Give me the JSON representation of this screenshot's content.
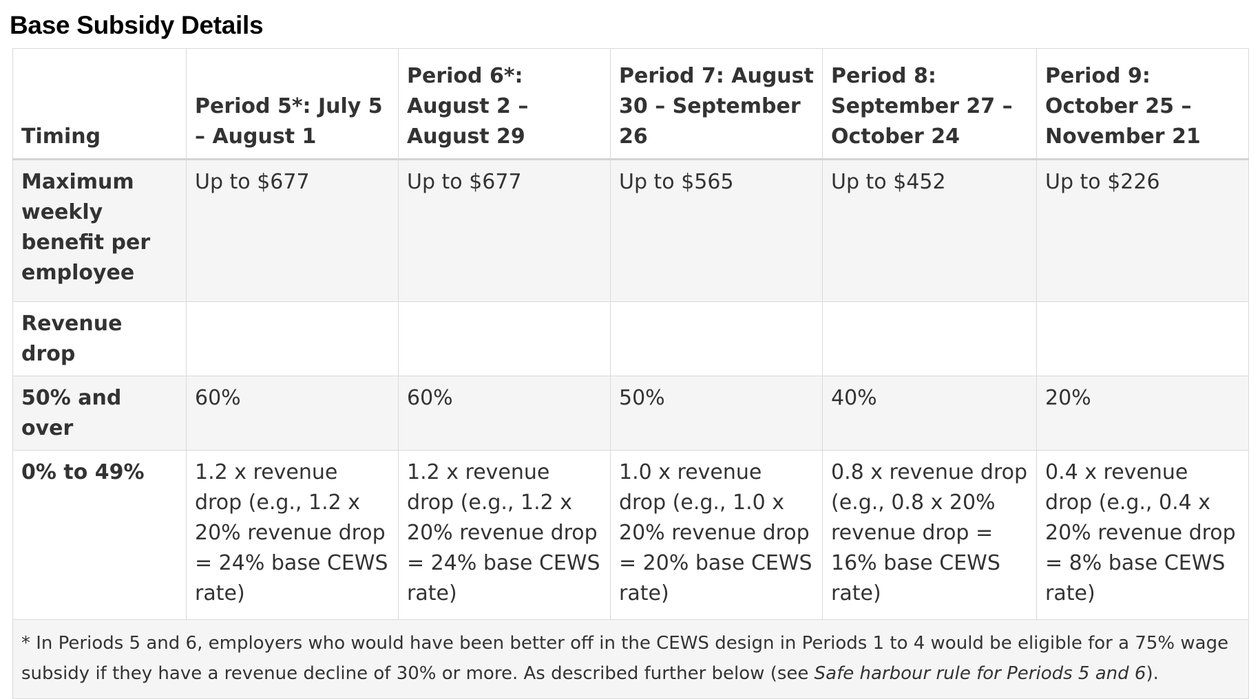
{
  "title": "Base Subsidy Details",
  "table": {
    "header": {
      "label": "Timing",
      "periods": [
        "Period 5*: July 5 – August 1",
        "Period 6*: August 2 – August 29",
        "Period 7: August 30 – September 26",
        "Period 8: September 27 – October 24",
        "Period 9: October 25 – November 21"
      ]
    },
    "rows": [
      {
        "label": "Maximum weekly benefit per employee",
        "cells": [
          "Up to $677",
          "Up to $677",
          "Up to $565",
          "Up to $452",
          "Up to $226"
        ]
      },
      {
        "label": "Revenue drop",
        "cells": [
          "",
          "",
          "",
          "",
          ""
        ]
      },
      {
        "label": "50% and over",
        "cells": [
          "60%",
          "60%",
          "50%",
          "40%",
          "20%"
        ]
      },
      {
        "label": "0% to 49%",
        "cells": [
          "1.2 x revenue drop (e.g., 1.2 x 20% revenue drop = 24% base CEWS rate)",
          "1.2 x revenue drop (e.g., 1.2 x 20% revenue drop = 24% base CEWS rate)",
          "1.0 x revenue drop (e.g., 1.0 x 20% revenue drop = 20% base CEWS rate)",
          "0.8 x revenue drop (e.g., 0.8 x 20% revenue drop = 16% base CEWS rate)",
          "0.4 x revenue drop (e.g., 0.4 x 20% revenue drop = 8% base CEWS rate)"
        ]
      }
    ],
    "footnote": {
      "text_before": "* In Periods 5 and 6, employers who would have been better off in the CEWS design in Periods 1 to 4 would be eligible for a 75% wage subsidy if they have a revenue decline of 30% or more. As described further below (see ",
      "italic": "Safe harbour rule for Periods 5 and 6",
      "text_after": ")."
    }
  },
  "colors": {
    "shaded_row": "#f5f5f5",
    "border": "#d9d9d9",
    "text": "#333333",
    "title": "#000000"
  }
}
